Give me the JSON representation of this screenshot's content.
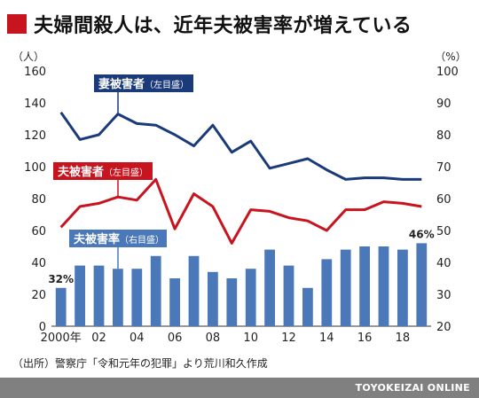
{
  "title": "夫婦間殺人は、近年夫被害率が増えている",
  "source_note": "（出所）警察庁「令和元年の犯罪」より荒川和久作成",
  "footer_brand": "TOYOKEIZAI ONLINE",
  "colors": {
    "title_square": "#c8141e",
    "wife_line": "#1a3a7a",
    "husband_line": "#c8141e",
    "bars": "#4a78b8",
    "footer": "#808080"
  },
  "chart_data": {
    "type": "bar+line",
    "x": [
      2000,
      2001,
      2002,
      2003,
      2004,
      2005,
      2006,
      2007,
      2008,
      2009,
      2010,
      2011,
      2012,
      2013,
      2014,
      2015,
      2016,
      2017,
      2018,
      2019
    ],
    "x_tick_labels": [
      {
        "x": 2000,
        "label": "2000年"
      },
      {
        "x": 2002,
        "label": "02"
      },
      {
        "x": 2004,
        "label": "04"
      },
      {
        "x": 2006,
        "label": "06"
      },
      {
        "x": 2008,
        "label": "08"
      },
      {
        "x": 2010,
        "label": "10"
      },
      {
        "x": 2012,
        "label": "12"
      },
      {
        "x": 2014,
        "label": "14"
      },
      {
        "x": 2016,
        "label": "16"
      },
      {
        "x": 2018,
        "label": "18"
      }
    ],
    "left_axis": {
      "unit": "（人）",
      "range": [
        0,
        160
      ],
      "ticks": [
        0,
        20,
        40,
        60,
        80,
        100,
        120,
        140,
        160
      ]
    },
    "right_axis": {
      "unit": "（%）",
      "range": [
        20,
        100
      ],
      "ticks": [
        20,
        30,
        40,
        50,
        60,
        70,
        80,
        90,
        100
      ]
    },
    "series": [
      {
        "name": "妻被害者",
        "axis_note": "（左目盛）",
        "kind": "line",
        "axis": "left",
        "values": [
          134,
          117,
          120,
          133,
          127,
          126,
          120,
          113,
          126,
          109,
          116,
          99,
          102,
          105,
          98,
          92,
          93,
          93,
          92,
          92
        ]
      },
      {
        "name": "夫被害者",
        "axis_note": "（左目盛）",
        "kind": "line",
        "axis": "left",
        "values": [
          62,
          75,
          77,
          81,
          79,
          92,
          61,
          83,
          75,
          52,
          73,
          72,
          68,
          66,
          60,
          73,
          73,
          78,
          77,
          75
        ]
      },
      {
        "name": "夫被害率",
        "axis_note": "（右目盛）",
        "kind": "bar",
        "axis": "right",
        "values": [
          32,
          39,
          39,
          38,
          38,
          42,
          35,
          42,
          37,
          35,
          38,
          44,
          39,
          32,
          41,
          44,
          45,
          45,
          44,
          46
        ]
      }
    ],
    "annotations": [
      {
        "x": 2000,
        "text": "32%"
      },
      {
        "x": 2019,
        "text": "46%"
      }
    ],
    "grid": false
  }
}
